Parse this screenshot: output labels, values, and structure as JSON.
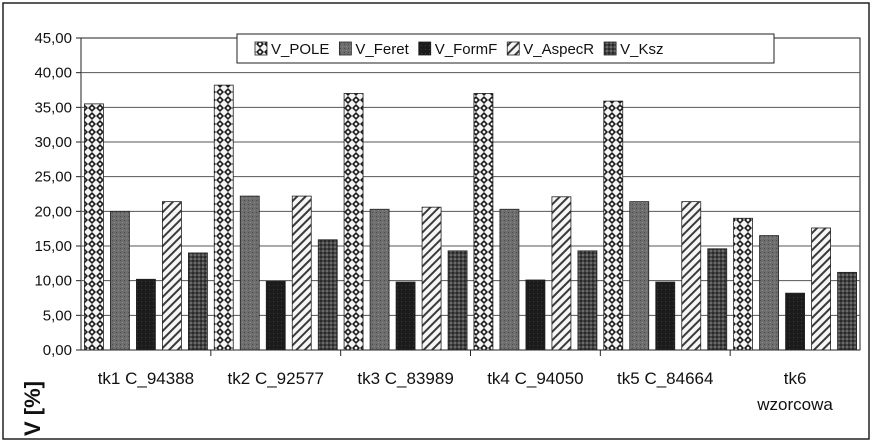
{
  "chart_data": {
    "type": "bar",
    "categories": [
      "tk1 C_94388",
      "tk2 C_92577",
      "tk3 C_83989",
      "tk4 C_94050",
      "tk5 C_84664",
      "tk6 wzorcowa"
    ],
    "category_lines": [
      [
        "tk1  C_94388"
      ],
      [
        "tk2  C_92577"
      ],
      [
        "tk3  C_83989"
      ],
      [
        "tk4  C_94050"
      ],
      [
        "tk5  C_84664"
      ],
      [
        "tk6",
        "wzorcowa"
      ]
    ],
    "series": [
      {
        "name": "V_POLE",
        "values": [
          35.5,
          38.2,
          37.0,
          37.0,
          35.9,
          19.0
        ],
        "pattern": "diamond"
      },
      {
        "name": "V_Feret",
        "values": [
          20.0,
          22.2,
          20.3,
          20.3,
          21.4,
          16.5
        ],
        "pattern": "gray"
      },
      {
        "name": "V_FormF",
        "values": [
          10.2,
          9.9,
          9.8,
          10.1,
          9.8,
          8.2
        ],
        "pattern": "dark"
      },
      {
        "name": "V_AspecR",
        "values": [
          21.4,
          22.2,
          20.6,
          22.1,
          21.4,
          17.6
        ],
        "pattern": "hatch"
      },
      {
        "name": "V_Ksz",
        "values": [
          14.0,
          15.9,
          14.3,
          14.3,
          14.6,
          11.2
        ],
        "pattern": "grid"
      }
    ],
    "ylabel": "V [%]",
    "ylim": [
      0,
      45
    ],
    "yticks": [
      "0,00",
      "5,00",
      "10,00",
      "15,00",
      "20,00",
      "25,00",
      "30,00",
      "35,00",
      "40,00",
      "45,00"
    ],
    "grid": true,
    "legend": "top-center"
  }
}
